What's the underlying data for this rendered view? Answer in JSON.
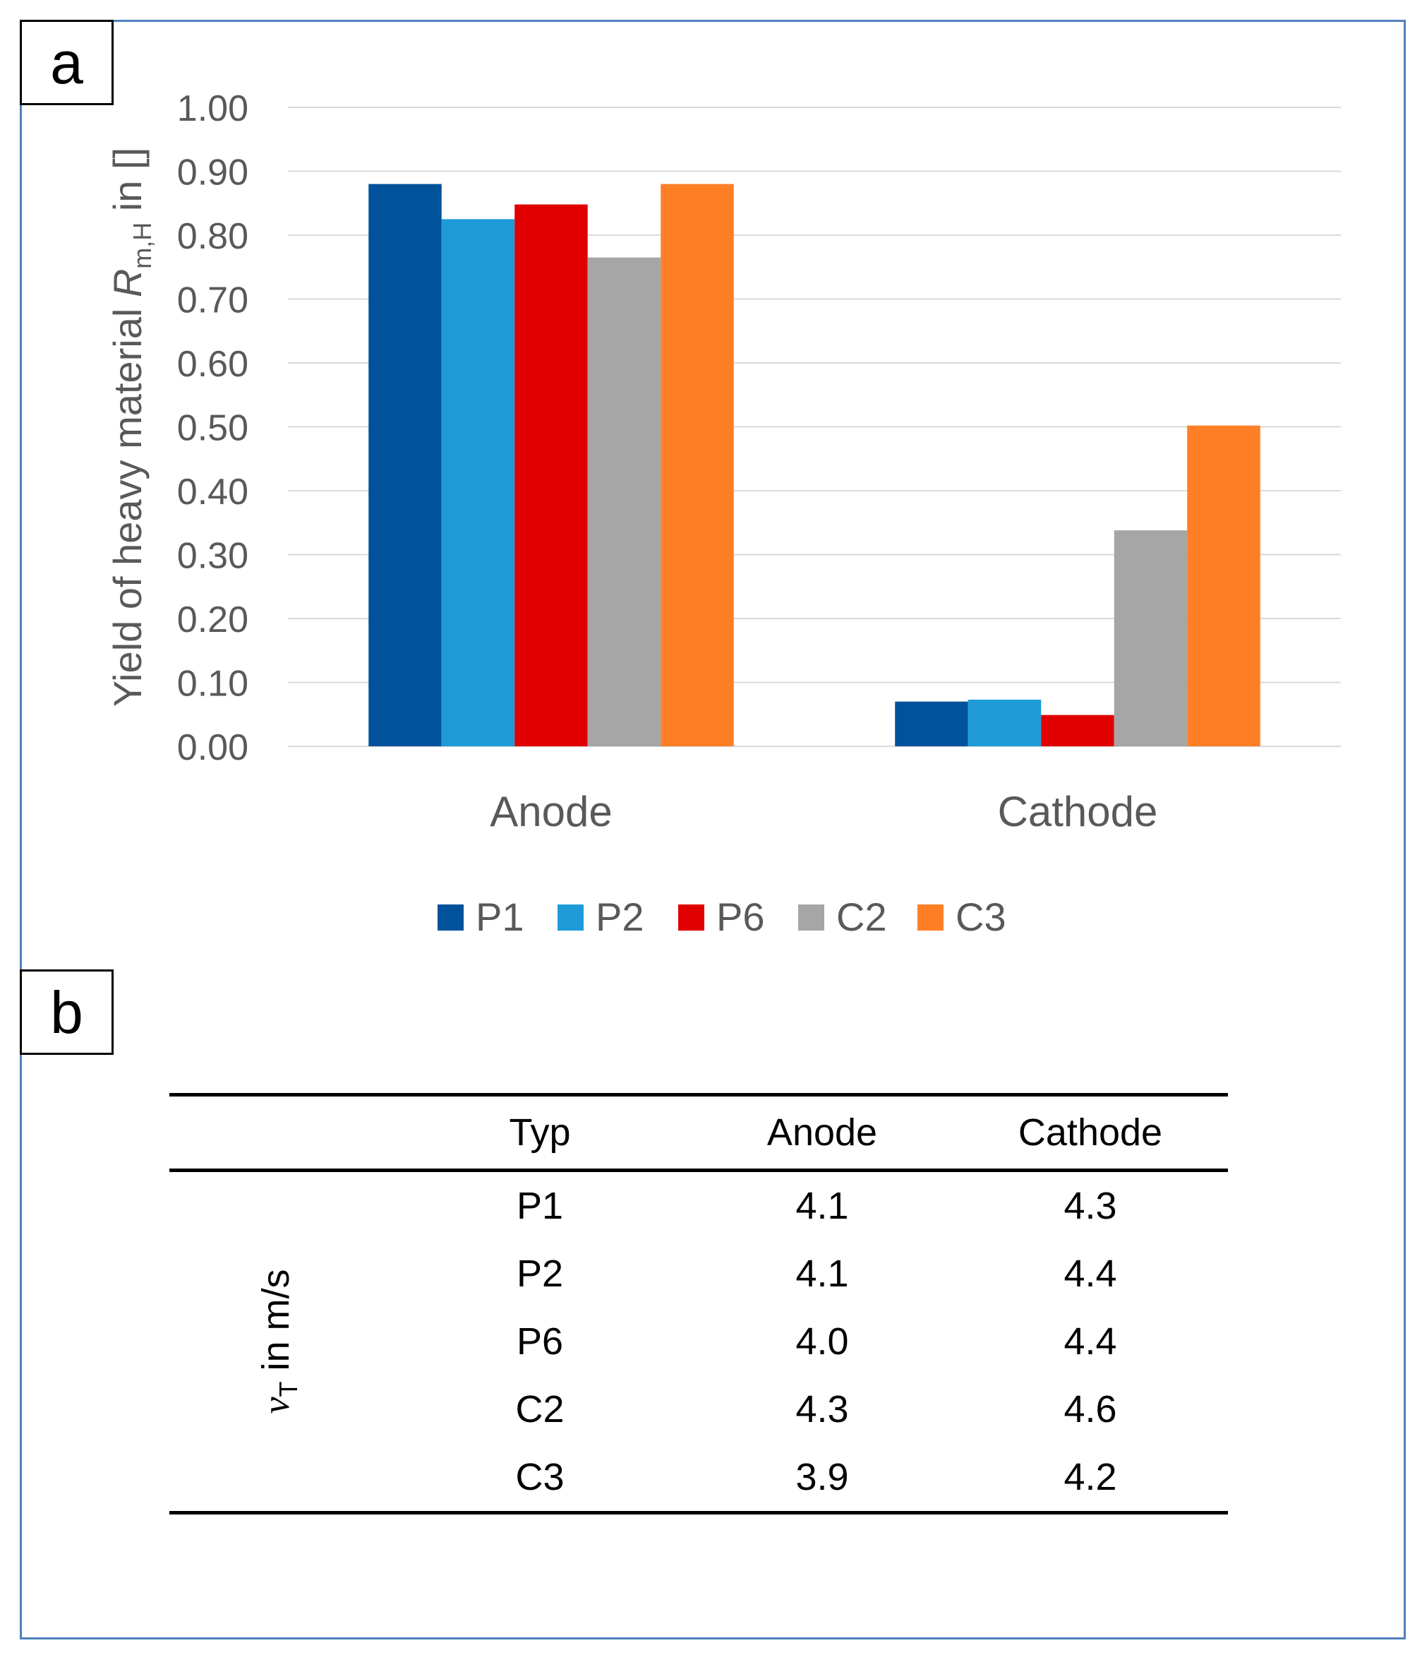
{
  "panel_a": {
    "label": "a"
  },
  "panel_b": {
    "label": "b"
  },
  "chart_data": {
    "type": "bar",
    "title": "",
    "categories": [
      "Anode",
      "Cathode"
    ],
    "series": [
      {
        "name": "P1",
        "color": "#00529B",
        "values": [
          0.88,
          0.07
        ]
      },
      {
        "name": "P2",
        "color": "#1E9BD7",
        "values": [
          0.825,
          0.073
        ]
      },
      {
        "name": "P6",
        "color": "#E10000",
        "values": [
          0.848,
          0.049
        ]
      },
      {
        "name": "C2",
        "color": "#A6A6A6",
        "values": [
          0.765,
          0.338
        ]
      },
      {
        "name": "C3",
        "color": "#FF7F27",
        "values": [
          0.88,
          0.502
        ]
      }
    ],
    "ylabel": {
      "prefix": "Yield of heavy material ",
      "symbol": "R",
      "subscript": "m,H",
      "suffix": " in []"
    },
    "ylim": [
      0,
      1.0
    ],
    "yticks": [
      "0.00",
      "0.10",
      "0.20",
      "0.30",
      "0.40",
      "0.50",
      "0.60",
      "0.70",
      "0.80",
      "0.90",
      "1.00"
    ],
    "grid": true,
    "legend_position": "bottom"
  },
  "table": {
    "row_label": {
      "symbol": "v",
      "subscript": "T",
      "suffix": " in m/s"
    },
    "headers": [
      "Typ",
      "Anode",
      "Cathode"
    ],
    "rows": [
      [
        "P1",
        "4.1",
        "4.3"
      ],
      [
        "P2",
        "4.1",
        "4.4"
      ],
      [
        "P6",
        "4.0",
        "4.4"
      ],
      [
        "C2",
        "4.3",
        "4.6"
      ],
      [
        "C3",
        "3.9",
        "4.2"
      ]
    ]
  }
}
